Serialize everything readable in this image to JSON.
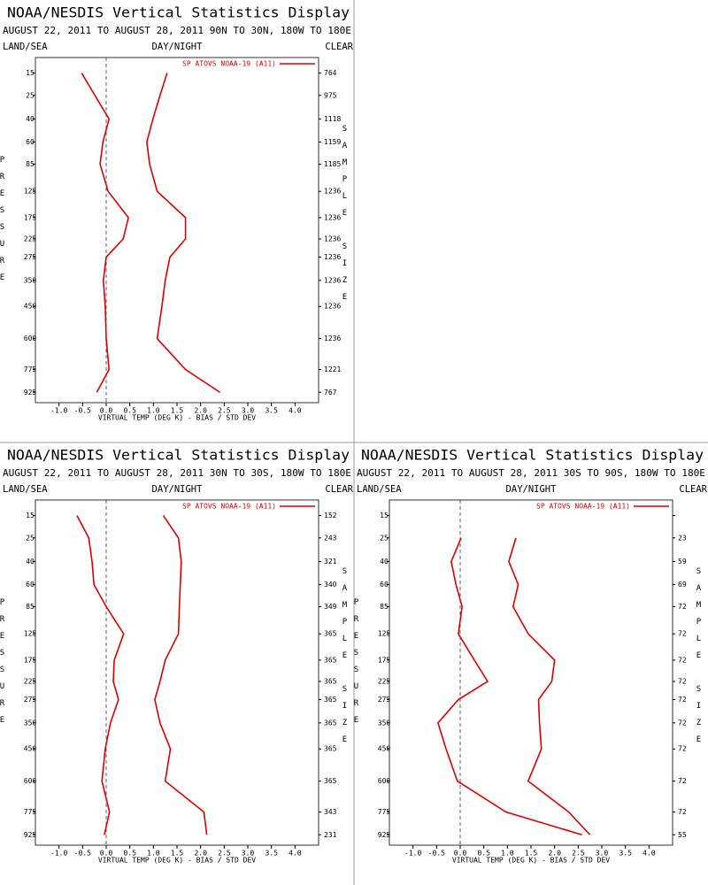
{
  "chart_data": [
    {
      "type": "profile",
      "title": "NOAA/NESDIS Vertical Statistics Display",
      "subtitle": "AUGUST 22, 2011 TO AUGUST 28, 2011  90N TO 30N, 180W TO 180E",
      "left_header": "LAND/SEA",
      "center_header": "DAY/NIGHT",
      "right_header": "CLEAR",
      "legend": "SP ATOVS NOAA-19 (A11)",
      "xlabel": "VIRTUAL TEMP (DEG K) - BIAS / STD DEV",
      "ylabel": "PRESSURE",
      "y2label": "SAMPLE SIZE",
      "levels": [
        15,
        25,
        40,
        60,
        85,
        125,
        175,
        225,
        275,
        350,
        450,
        600,
        775,
        925
      ],
      "sample_sizes": [
        764,
        975,
        1118,
        1159,
        1185,
        1236,
        1236,
        1236,
        1236,
        1236,
        1236,
        1236,
        1221,
        767
      ],
      "series": [
        {
          "color": "#dd0000",
          "values": [
            -0.52,
            -0.24,
            0.06,
            -0.07,
            -0.13,
            0.04,
            0.47,
            0.36,
            0.0,
            -0.06,
            -0.02,
            0.0,
            0.06,
            -0.2
          ]
        },
        {
          "color": "#dd0000",
          "values": [
            1.29,
            1.14,
            0.99,
            0.86,
            0.92,
            1.08,
            1.68,
            1.68,
            1.35,
            1.25,
            1.18,
            1.08,
            1.68,
            2.41
          ]
        }
      ],
      "xlim": [
        -1.5,
        4.5
      ],
      "ylim": [
        10,
        1000
      ],
      "xticks": [
        {
          "value": -1,
          "label": "-1.0"
        },
        {
          "value": -0.5,
          "label": "-0.5"
        },
        {
          "value": 0,
          "label": "0.0"
        },
        {
          "value": 0.5,
          "label": "0.5"
        },
        {
          "value": 1,
          "label": "1.0"
        },
        {
          "value": 1.5,
          "label": "1.5"
        },
        {
          "value": 2,
          "label": "2.0"
        },
        {
          "value": 2.5,
          "label": "2.5"
        },
        {
          "value": 3,
          "label": "3.0"
        },
        {
          "value": 3.5,
          "label": "3.5"
        },
        {
          "value": 4,
          "label": "4.0"
        }
      ]
    },
    {
      "type": "profile",
      "title": "NOAA/NESDIS Vertical Statistics Display",
      "subtitle": "AUGUST 22, 2011 TO AUGUST 28, 2011  30N TO 30S, 180W TO 180E",
      "left_header": "LAND/SEA",
      "center_header": "DAY/NIGHT",
      "right_header": "CLEAR",
      "legend": "SP ATOVS NOAA-19 (A11)",
      "xlabel": "VIRTUAL TEMP (DEG K) - BIAS / STD DEV",
      "ylabel": "PRESSURE",
      "y2label": "SAMPLE SIZE",
      "levels": [
        15,
        25,
        40,
        60,
        85,
        125,
        175,
        225,
        275,
        350,
        450,
        600,
        775,
        925
      ],
      "sample_sizes": [
        152,
        243,
        321,
        340,
        349,
        365,
        365,
        365,
        365,
        365,
        365,
        365,
        343,
        231
      ],
      "series": [
        {
          "color": "#dd0000",
          "values": [
            -0.62,
            -0.37,
            -0.3,
            -0.26,
            0.0,
            0.37,
            0.17,
            0.15,
            0.26,
            0.09,
            -0.02,
            -0.09,
            0.07,
            -0.04
          ]
        },
        {
          "color": "#dd0000",
          "values": [
            1.21,
            1.53,
            1.59,
            1.57,
            1.55,
            1.53,
            1.25,
            1.14,
            1.03,
            1.14,
            1.36,
            1.25,
            2.07,
            2.13
          ]
        }
      ],
      "xlim": [
        -1.5,
        4.5
      ],
      "ylim": [
        10,
        1000
      ],
      "xticks": [
        {
          "value": -1,
          "label": "-1.0"
        },
        {
          "value": -0.5,
          "label": "-0.5"
        },
        {
          "value": 0,
          "label": "0.0"
        },
        {
          "value": 0.5,
          "label": "0.5"
        },
        {
          "value": 1,
          "label": "1.0"
        },
        {
          "value": 1.5,
          "label": "1.5"
        },
        {
          "value": 2,
          "label": "2.0"
        },
        {
          "value": 2.5,
          "label": "2.5"
        },
        {
          "value": 3,
          "label": "3.0"
        },
        {
          "value": 3.5,
          "label": "3.5"
        },
        {
          "value": 4,
          "label": "4.0"
        }
      ]
    },
    {
      "type": "profile",
      "title": "NOAA/NESDIS Vertical Statistics Display",
      "subtitle": "AUGUST 22, 2011 TO AUGUST 28, 2011  30S TO 90S, 180W TO 180E",
      "left_header": "LAND/SEA",
      "center_header": "DAY/NIGHT",
      "right_header": "CLEAR",
      "legend": "SP ATOVS NOAA-19 (A11)",
      "xlabel": "VIRTUAL TEMP (DEG K) - BIAS / STD DEV",
      "ylabel": "PRESSURE",
      "y2label": "SAMPLE SIZE",
      "levels": [
        15,
        25,
        40,
        60,
        85,
        125,
        175,
        225,
        275,
        350,
        450,
        600,
        775,
        925
      ],
      "sample_sizes": [
        null,
        23,
        59,
        69,
        72,
        72,
        72,
        72,
        72,
        72,
        72,
        72,
        72,
        55
      ],
      "series": [
        {
          "color": "#dd0000",
          "values": [
            null,
            0.02,
            -0.19,
            -0.09,
            0.04,
            -0.04,
            0.3,
            0.58,
            -0.04,
            -0.47,
            -0.3,
            -0.06,
            0.97,
            2.58
          ]
        },
        {
          "color": "#dd0000",
          "values": [
            null,
            1.18,
            1.03,
            1.23,
            1.12,
            1.44,
            2.0,
            1.94,
            1.66,
            1.68,
            1.72,
            1.44,
            2.3,
            2.75
          ]
        }
      ],
      "xlim": [
        -1.5,
        4.5
      ],
      "ylim": [
        10,
        1000
      ],
      "xticks": [
        {
          "value": -1,
          "label": "-1.0"
        },
        {
          "value": -0.5,
          "label": "-0.5"
        },
        {
          "value": 0,
          "label": "0.0"
        },
        {
          "value": 0.5,
          "label": "0.5"
        },
        {
          "value": 1,
          "label": "1.0"
        },
        {
          "value": 1.5,
          "label": "1.5"
        },
        {
          "value": 2,
          "label": "2.0"
        },
        {
          "value": 2.5,
          "label": "2.5"
        },
        {
          "value": 3,
          "label": "3.0"
        },
        {
          "value": 3.5,
          "label": "3.5"
        },
        {
          "value": 4,
          "label": "4.0"
        }
      ]
    }
  ]
}
